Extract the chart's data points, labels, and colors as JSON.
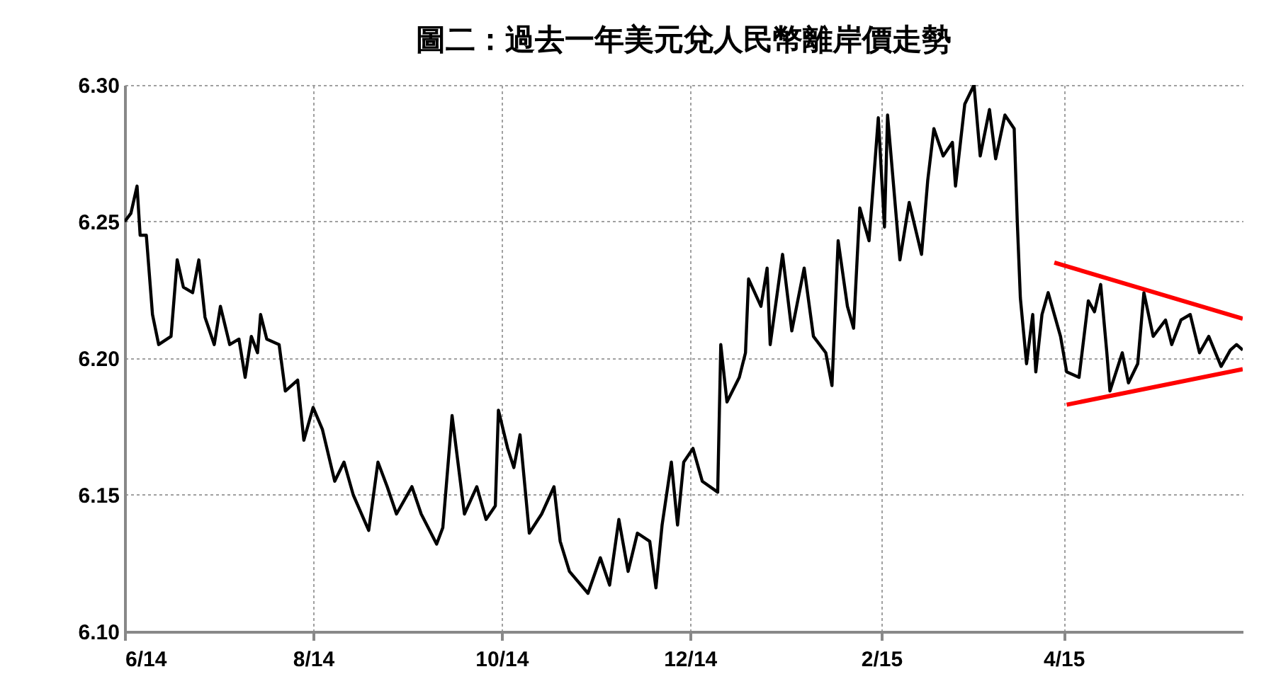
{
  "chart_data": {
    "type": "line",
    "title": "圖二：過去一年美元兌人民幣離岸價走勢",
    "xlim": [
      "2014-06-01",
      "2015-05-29"
    ],
    "xticks": [
      {
        "value": "2014-06-01",
        "label": "6/14"
      },
      {
        "value": "2014-08-01",
        "label": "8/14"
      },
      {
        "value": "2014-10-01",
        "label": "10/14"
      },
      {
        "value": "2014-12-01",
        "label": "12/14"
      },
      {
        "value": "2015-02-01",
        "label": "2/15"
      },
      {
        "value": "2015-04-01",
        "label": "4/15"
      }
    ],
    "ylim": [
      6.1,
      6.3
    ],
    "yticks": [
      {
        "value": 6.1,
        "label": "6.10"
      },
      {
        "value": 6.15,
        "label": "6.15"
      },
      {
        "value": 6.2,
        "label": "6.20"
      },
      {
        "value": 6.25,
        "label": "6.25"
      },
      {
        "value": 6.3,
        "label": "6.30"
      }
    ],
    "grid": true,
    "line_style": "solid",
    "series": [
      {
        "color": "#000000",
        "x": [
          "2014-06-01",
          "2014-06-03",
          "2014-06-05",
          "2014-06-06",
          "2014-06-08",
          "2014-06-10",
          "2014-06-12",
          "2014-06-16",
          "2014-06-18",
          "2014-06-20",
          "2014-06-23",
          "2014-06-25",
          "2014-06-27",
          "2014-06-30",
          "2014-07-02",
          "2014-07-05",
          "2014-07-08",
          "2014-07-10",
          "2014-07-12",
          "2014-07-14",
          "2014-07-15",
          "2014-07-17",
          "2014-07-21",
          "2014-07-23",
          "2014-07-27",
          "2014-07-29",
          "2014-08-01",
          "2014-08-04",
          "2014-08-08",
          "2014-08-11",
          "2014-08-14",
          "2014-08-19",
          "2014-08-22",
          "2014-08-25",
          "2014-08-28",
          "2014-09-02",
          "2014-09-05",
          "2014-09-10",
          "2014-09-12",
          "2014-09-15",
          "2014-09-19",
          "2014-09-23",
          "2014-09-26",
          "2014-09-29",
          "2014-09-30",
          "2014-10-03",
          "2014-10-05",
          "2014-10-07",
          "2014-10-10",
          "2014-10-14",
          "2014-10-18",
          "2014-10-20",
          "2014-10-23",
          "2014-10-29",
          "2014-11-02",
          "2014-11-05",
          "2014-11-08",
          "2014-11-11",
          "2014-11-14",
          "2014-11-18",
          "2014-11-20",
          "2014-11-22",
          "2014-11-25",
          "2014-11-27",
          "2014-11-29",
          "2014-12-02",
          "2014-12-05",
          "2014-12-10",
          "2014-12-11",
          "2014-12-13",
          "2014-12-17",
          "2014-12-19",
          "2014-12-20",
          "2014-12-24",
          "2014-12-26",
          "2014-12-27",
          "2014-12-31",
          "2015-01-03",
          "2015-01-07",
          "2015-01-10",
          "2015-01-14",
          "2015-01-16",
          "2015-01-18",
          "2015-01-21",
          "2015-01-23",
          "2015-01-25",
          "2015-01-28",
          "2015-01-31",
          "2015-02-02",
          "2015-02-03",
          "2015-02-07",
          "2015-02-10",
          "2015-02-14",
          "2015-02-16",
          "2015-02-18",
          "2015-02-21",
          "2015-02-24",
          "2015-02-25",
          "2015-02-28",
          "2015-03-03",
          "2015-03-05",
          "2015-03-08",
          "2015-03-10",
          "2015-03-13",
          "2015-03-16",
          "2015-03-17",
          "2015-03-18",
          "2015-03-20",
          "2015-03-22",
          "2015-03-23",
          "2015-03-25",
          "2015-03-27",
          "2015-03-31",
          "2015-04-02",
          "2015-04-06",
          "2015-04-09",
          "2015-04-11",
          "2015-04-13",
          "2015-04-15",
          "2015-04-16",
          "2015-04-20",
          "2015-04-22",
          "2015-04-25",
          "2015-04-27",
          "2015-04-30",
          "2015-05-04",
          "2015-05-06",
          "2015-05-09",
          "2015-05-12",
          "2015-05-15",
          "2015-05-18",
          "2015-05-22",
          "2015-05-25",
          "2015-05-27",
          "2015-05-29"
        ],
        "values": [
          6.25,
          6.253,
          6.263,
          6.245,
          6.245,
          6.216,
          6.205,
          6.208,
          6.236,
          6.226,
          6.224,
          6.236,
          6.215,
          6.205,
          6.219,
          6.205,
          6.207,
          6.193,
          6.208,
          6.202,
          6.216,
          6.207,
          6.205,
          6.188,
          6.192,
          6.17,
          6.182,
          6.174,
          6.155,
          6.162,
          6.15,
          6.137,
          6.162,
          6.153,
          6.143,
          6.153,
          6.143,
          6.132,
          6.138,
          6.179,
          6.143,
          6.153,
          6.141,
          6.146,
          6.181,
          6.167,
          6.16,
          6.172,
          6.136,
          6.143,
          6.153,
          6.133,
          6.122,
          6.114,
          6.127,
          6.117,
          6.141,
          6.122,
          6.136,
          6.133,
          6.116,
          6.139,
          6.162,
          6.139,
          6.162,
          6.167,
          6.155,
          6.151,
          6.205,
          6.184,
          6.193,
          6.202,
          6.229,
          6.219,
          6.233,
          6.205,
          6.238,
          6.21,
          6.233,
          6.208,
          6.202,
          6.19,
          6.243,
          6.219,
          6.211,
          6.255,
          6.243,
          6.288,
          6.248,
          6.289,
          6.236,
          6.257,
          6.238,
          6.265,
          6.284,
          6.274,
          6.279,
          6.263,
          6.293,
          6.3,
          6.274,
          6.291,
          6.273,
          6.289,
          6.284,
          6.25,
          6.222,
          6.198,
          6.216,
          6.195,
          6.216,
          6.224,
          6.208,
          6.195,
          6.193,
          6.221,
          6.217,
          6.227,
          6.202,
          6.188,
          6.202,
          6.191,
          6.198,
          6.224,
          6.208,
          6.214,
          6.205,
          6.214,
          6.216,
          6.202,
          6.208,
          6.197,
          6.203,
          6.205,
          6.203
        ]
      },
      {
        "type": "line",
        "color": "#ff0000",
        "x": [
          "2015-03-29",
          "2015-05-29"
        ],
        "values": [
          6.235,
          6.2145
        ]
      },
      {
        "type": "line",
        "color": "#ff0000",
        "x": [
          "2015-04-02",
          "2015-05-29"
        ],
        "values": [
          6.183,
          6.196
        ]
      }
    ]
  }
}
